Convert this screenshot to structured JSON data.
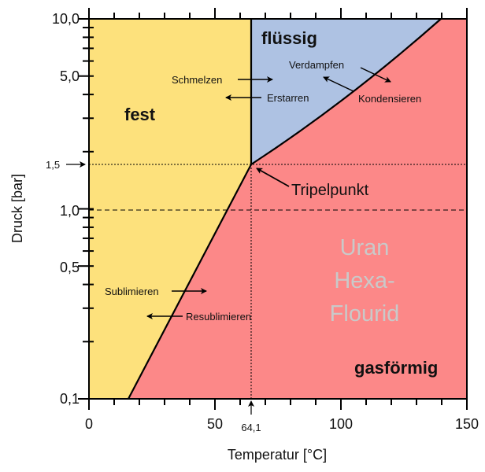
{
  "chart_data": {
    "type": "area",
    "title": "",
    "xlabel": "Temperatur [°C]",
    "ylabel": "Druck [bar]",
    "xlim": [
      0,
      150
    ],
    "ylim": [
      0.1,
      10
    ],
    "yscale": "log",
    "x_ticks": [
      "0",
      "50",
      "100",
      "150"
    ],
    "y_ticks": [
      "10,0",
      "5,0",
      "1,0",
      "0,5",
      "0,1"
    ],
    "triple_point": {
      "T": 64.1,
      "p": 1.5,
      "T_label": "64,1",
      "p_label": "1,5",
      "label": "Tripelpunkt"
    },
    "reference_pressure": 1.0,
    "curves": [
      {
        "name": "Sublimationskurve",
        "points": [
          [
            15.6,
            0.1
          ],
          [
            64.1,
            1.5
          ]
        ]
      },
      {
        "name": "Schmelzkurve",
        "points": [
          [
            64.1,
            1.5
          ],
          [
            64.1,
            10
          ]
        ]
      },
      {
        "name": "Dampfdruckkurve",
        "points": [
          [
            64.1,
            1.5
          ],
          [
            100,
            4.5
          ],
          [
            139.7,
            10
          ]
        ]
      }
    ],
    "regions": [
      {
        "name": "fest",
        "color": "#fde17c"
      },
      {
        "name": "flüssig",
        "color": "#aec2e3"
      },
      {
        "name": "gasförmig",
        "color": "#fc8888"
      }
    ],
    "annotations": {
      "schmelzen": "Schmelzen",
      "erstarren": "Erstarren",
      "verdampfen": "Verdampfen",
      "kondensieren": "Kondensieren",
      "sublimieren": "Sublimieren",
      "resublimieren": "Resublimieren",
      "substance": [
        "Uran",
        "Hexa-",
        "Flourid"
      ]
    }
  }
}
